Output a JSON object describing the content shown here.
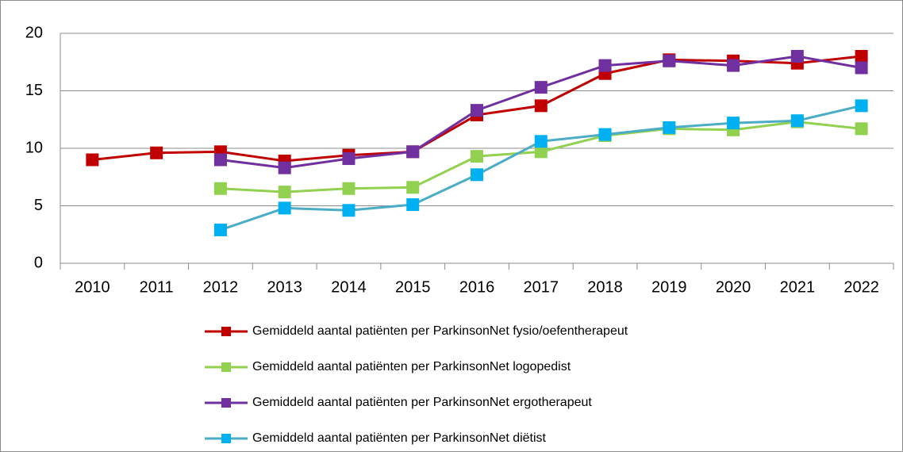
{
  "chart_data": {
    "type": "line",
    "categories": [
      "2010",
      "2011",
      "2012",
      "2013",
      "2014",
      "2015",
      "2016",
      "2017",
      "2018",
      "2019",
      "2020",
      "2021",
      "2022"
    ],
    "series": [
      {
        "name": "Gemiddeld aantal patiënten per ParkinsonNet fysio/oefentherapeut",
        "color": "#c00000",
        "marker_color": "#c00000",
        "values": [
          9.0,
          9.6,
          9.7,
          8.9,
          9.4,
          9.7,
          12.9,
          13.7,
          16.5,
          17.7,
          17.6,
          17.4,
          18.0
        ]
      },
      {
        "name": "Gemiddeld aantal patiënten per ParkinsonNet logopedist",
        "color": "#92d050",
        "marker_color": "#92d050",
        "values": [
          null,
          null,
          6.5,
          6.2,
          6.5,
          6.6,
          9.3,
          9.7,
          11.1,
          11.7,
          11.6,
          12.3,
          11.7
        ]
      },
      {
        "name": "Gemiddeld aantal patiënten per ParkinsonNet ergotherapeut",
        "color": "#7030a0",
        "marker_color": "#7030a0",
        "values": [
          null,
          null,
          9.0,
          8.3,
          9.1,
          9.7,
          13.3,
          15.3,
          17.2,
          17.6,
          17.2,
          18.0,
          17.0
        ]
      },
      {
        "name": "Gemiddeld aantal patiënten per ParkinsonNet diëtist",
        "color": "#4bacc6",
        "marker_color": "#00b0f0",
        "values": [
          null,
          null,
          2.9,
          4.8,
          4.6,
          5.1,
          7.7,
          10.6,
          11.2,
          11.8,
          12.2,
          12.4,
          13.7
        ]
      }
    ],
    "ylim": [
      0,
      20
    ],
    "yticks": [
      0,
      5,
      10,
      15,
      20
    ],
    "grid": true,
    "legend": "bottom"
  }
}
